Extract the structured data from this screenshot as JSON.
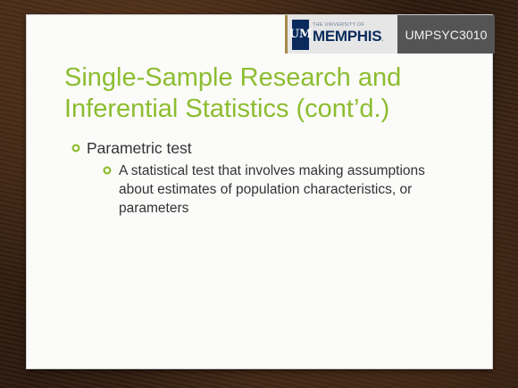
{
  "header": {
    "logo_mark": "UM",
    "logo_small_text": "THE UNIVERSITY OF",
    "logo_big_text": "MEMPHIS",
    "logo_trailing_dot": ".",
    "course_code": "UMPSYC3010"
  },
  "slide": {
    "title_line1": "Single-Sample Research and",
    "title_line2": "Inferential Statistics (cont’d.)",
    "bullets": [
      {
        "text": "Parametric test",
        "icon": "hollow-circle-bullet-icon",
        "sub": [
          {
            "text": "A statistical test that involves making assumptions about estimates of population characteristics, or parameters",
            "icon": "hollow-circle-bullet-icon"
          }
        ]
      }
    ]
  },
  "colors": {
    "title": "#8dbd2f",
    "bullet": "#8dbd2f",
    "body_text": "#333333",
    "logo_navy": "#0a2b5c",
    "logo_bar": "#545454",
    "background_wood": "#2c190d"
  }
}
